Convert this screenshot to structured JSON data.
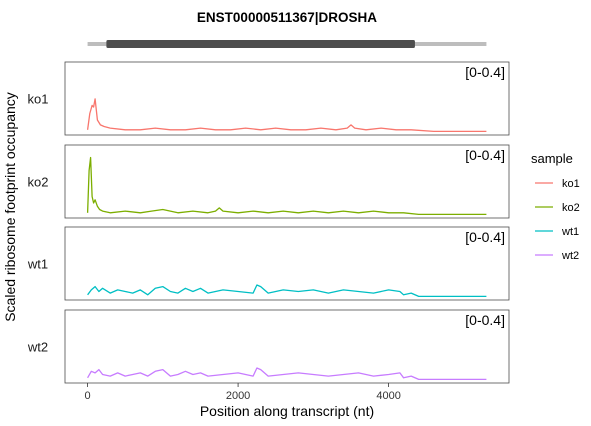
{
  "chart_data": {
    "type": "line",
    "title": "ENST00000511367|DROSHA",
    "xlabel": "Position along transcript (nt)",
    "ylabel": "Scaled ribosome footprint occupancy",
    "xlim": [
      -300,
      5600
    ],
    "x_ticks": [
      0,
      2000,
      4000
    ],
    "x_tick_labels": [
      "0",
      "2000",
      "4000"
    ],
    "transcript": {
      "length": 5300,
      "cds_start": 250,
      "cds_end": 4350
    },
    "range_label": "[0-0.4]",
    "legend_title": "sample",
    "legend_position": "right",
    "grid": false,
    "panels": [
      {
        "name": "ko1",
        "color": "#F8766D",
        "x": [
          0,
          30,
          60,
          80,
          100,
          130,
          170,
          220,
          300,
          500,
          700,
          900,
          1100,
          1300,
          1500,
          1700,
          1900,
          2100,
          2300,
          2500,
          2700,
          2900,
          3100,
          3300,
          3450,
          3500,
          3550,
          3700,
          3900,
          4100,
          4300,
          4600,
          4900,
          5300
        ],
        "values": [
          0.02,
          0.12,
          0.17,
          0.16,
          0.21,
          0.08,
          0.05,
          0.04,
          0.03,
          0.02,
          0.02,
          0.03,
          0.02,
          0.02,
          0.03,
          0.02,
          0.02,
          0.03,
          0.02,
          0.03,
          0.02,
          0.02,
          0.03,
          0.02,
          0.03,
          0.05,
          0.03,
          0.02,
          0.03,
          0.02,
          0.02,
          0.01,
          0.01,
          0.01
        ]
      },
      {
        "name": "ko2",
        "color": "#7CAE00",
        "x": [
          0,
          20,
          40,
          60,
          80,
          100,
          130,
          160,
          200,
          300,
          500,
          700,
          850,
          1000,
          1200,
          1400,
          1600,
          1700,
          1750,
          1800,
          2000,
          2200,
          2400,
          2600,
          2800,
          3000,
          3200,
          3400,
          3600,
          3800,
          4000,
          4200,
          4400,
          4700,
          5000,
          5300
        ],
        "values": [
          0.02,
          0.28,
          0.36,
          0.12,
          0.08,
          0.1,
          0.06,
          0.04,
          0.03,
          0.02,
          0.03,
          0.02,
          0.03,
          0.04,
          0.02,
          0.03,
          0.02,
          0.03,
          0.05,
          0.03,
          0.02,
          0.03,
          0.02,
          0.03,
          0.02,
          0.03,
          0.02,
          0.03,
          0.02,
          0.03,
          0.02,
          0.02,
          0.01,
          0.01,
          0.01,
          0.01
        ]
      },
      {
        "name": "wt1",
        "color": "#00BFC4",
        "x": [
          0,
          50,
          100,
          150,
          200,
          300,
          400,
          500,
          600,
          700,
          800,
          900,
          1000,
          1100,
          1200,
          1300,
          1400,
          1500,
          1600,
          1800,
          2000,
          2200,
          2250,
          2300,
          2400,
          2600,
          2800,
          3000,
          3200,
          3400,
          3600,
          3800,
          4000,
          4150,
          4200,
          4300,
          4400,
          4700,
          5000,
          5300
        ],
        "values": [
          0.02,
          0.05,
          0.07,
          0.04,
          0.06,
          0.03,
          0.05,
          0.04,
          0.03,
          0.05,
          0.02,
          0.06,
          0.07,
          0.04,
          0.03,
          0.06,
          0.04,
          0.06,
          0.03,
          0.05,
          0.04,
          0.03,
          0.08,
          0.07,
          0.03,
          0.05,
          0.04,
          0.05,
          0.03,
          0.05,
          0.04,
          0.03,
          0.05,
          0.04,
          0.02,
          0.03,
          0.01,
          0.01,
          0.01,
          0.01
        ]
      },
      {
        "name": "wt2",
        "color": "#C77CFF",
        "x": [
          0,
          50,
          100,
          150,
          200,
          300,
          400,
          500,
          600,
          700,
          800,
          900,
          1000,
          1100,
          1200,
          1300,
          1400,
          1500,
          1600,
          1800,
          2000,
          2200,
          2250,
          2300,
          2400,
          2600,
          2800,
          3000,
          3200,
          3400,
          3600,
          3800,
          4000,
          4150,
          4200,
          4300,
          4400,
          4700,
          5000,
          5300
        ],
        "values": [
          0.02,
          0.06,
          0.05,
          0.07,
          0.04,
          0.03,
          0.05,
          0.03,
          0.04,
          0.05,
          0.03,
          0.06,
          0.07,
          0.03,
          0.04,
          0.06,
          0.04,
          0.05,
          0.03,
          0.04,
          0.05,
          0.03,
          0.08,
          0.07,
          0.03,
          0.04,
          0.05,
          0.04,
          0.03,
          0.04,
          0.05,
          0.03,
          0.04,
          0.05,
          0.02,
          0.03,
          0.01,
          0.01,
          0.01,
          0.01
        ]
      }
    ]
  }
}
